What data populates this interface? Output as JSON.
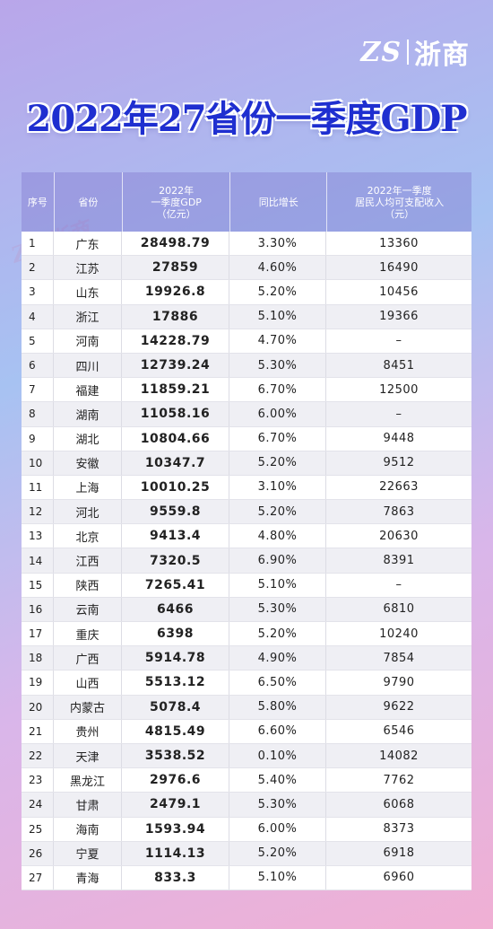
{
  "brand": {
    "logo_mark": "ZS",
    "logo_text": "浙商"
  },
  "title": "2022年27省份一季度GDP",
  "columns": [
    "序号",
    "省份",
    "2022年\n一季度GDP\n（亿元）",
    "同比增长",
    "2022年一季度\n居民人均可支配收入\n（元）"
  ],
  "rows": [
    {
      "no": "1",
      "province": "广东",
      "gdp": "28498.79",
      "growth": "3.30%",
      "income": "13360"
    },
    {
      "no": "2",
      "province": "江苏",
      "gdp": "27859",
      "growth": "4.60%",
      "income": "16490"
    },
    {
      "no": "3",
      "province": "山东",
      "gdp": "19926.8",
      "growth": "5.20%",
      "income": "10456"
    },
    {
      "no": "4",
      "province": "浙江",
      "gdp": "17886",
      "growth": "5.10%",
      "income": "19366"
    },
    {
      "no": "5",
      "province": "河南",
      "gdp": "14228.79",
      "growth": "4.70%",
      "income": "–"
    },
    {
      "no": "6",
      "province": "四川",
      "gdp": "12739.24",
      "growth": "5.30%",
      "income": "8451"
    },
    {
      "no": "7",
      "province": "福建",
      "gdp": "11859.21",
      "growth": "6.70%",
      "income": "12500"
    },
    {
      "no": "8",
      "province": "湖南",
      "gdp": "11058.16",
      "growth": "6.00%",
      "income": "–"
    },
    {
      "no": "9",
      "province": "湖北",
      "gdp": "10804.66",
      "growth": "6.70%",
      "income": "9448"
    },
    {
      "no": "10",
      "province": "安徽",
      "gdp": "10347.7",
      "growth": "5.20%",
      "income": "9512"
    },
    {
      "no": "11",
      "province": "上海",
      "gdp": "10010.25",
      "growth": "3.10%",
      "income": "22663"
    },
    {
      "no": "12",
      "province": "河北",
      "gdp": "9559.8",
      "growth": "5.20%",
      "income": "7863"
    },
    {
      "no": "13",
      "province": "北京",
      "gdp": "9413.4",
      "growth": "4.80%",
      "income": "20630"
    },
    {
      "no": "14",
      "province": "江西",
      "gdp": "7320.5",
      "growth": "6.90%",
      "income": "8391"
    },
    {
      "no": "15",
      "province": "陕西",
      "gdp": "7265.41",
      "growth": "5.10%",
      "income": "–"
    },
    {
      "no": "16",
      "province": "云南",
      "gdp": "6466",
      "growth": "5.30%",
      "income": "6810"
    },
    {
      "no": "17",
      "province": "重庆",
      "gdp": "6398",
      "growth": "5.20%",
      "income": "10240"
    },
    {
      "no": "18",
      "province": "广西",
      "gdp": "5914.78",
      "growth": "4.90%",
      "income": "7854"
    },
    {
      "no": "19",
      "province": "山西",
      "gdp": "5513.12",
      "growth": "6.50%",
      "income": "9790"
    },
    {
      "no": "20",
      "province": "内蒙古",
      "gdp": "5078.4",
      "growth": "5.80%",
      "income": "9622"
    },
    {
      "no": "21",
      "province": "贵州",
      "gdp": "4815.49",
      "growth": "6.60%",
      "income": "6546"
    },
    {
      "no": "22",
      "province": "天津",
      "gdp": "3538.52",
      "growth": "0.10%",
      "income": "14082"
    },
    {
      "no": "23",
      "province": "黑龙江",
      "gdp": "2976.6",
      "growth": "5.40%",
      "income": "7762"
    },
    {
      "no": "24",
      "province": "甘肃",
      "gdp": "2479.1",
      "growth": "5.30%",
      "income": "6068"
    },
    {
      "no": "25",
      "province": "海南",
      "gdp": "1593.94",
      "growth": "6.00%",
      "income": "8373"
    },
    {
      "no": "26",
      "province": "宁夏",
      "gdp": "1114.13",
      "growth": "5.20%",
      "income": "6918"
    },
    {
      "no": "27",
      "province": "青海",
      "gdp": "833.3",
      "growth": "5.10%",
      "income": "6960"
    }
  ],
  "colors": {
    "title": "#1f2fd0",
    "row_alt": "#efeff4"
  }
}
